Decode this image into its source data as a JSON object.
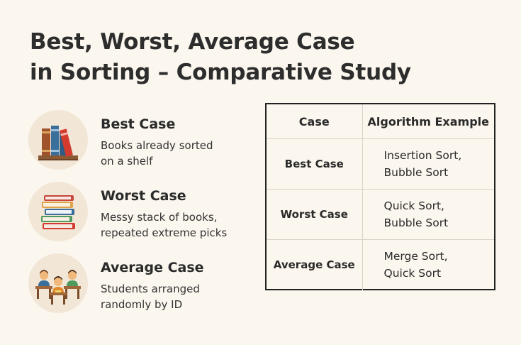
{
  "title": {
    "line1": "Best, Worst, Average Case",
    "line2": "in Sorting – Comparative Study"
  },
  "cases": [
    {
      "heading": "Best Case",
      "desc_line1": "Books already sorted",
      "desc_line2": "on a shelf",
      "icon": "books-on-shelf-icon"
    },
    {
      "heading": "Worst Case",
      "desc_line1": "Messy stack of books,",
      "desc_line2": "repeated extreme picks",
      "icon": "stack-of-books-icon"
    },
    {
      "heading": "Average Case",
      "desc_line1": "Students arranged",
      "desc_line2": "randomly by ID",
      "icon": "students-at-desks-icon"
    }
  ],
  "table": {
    "headers": [
      "Case",
      "Algorithm Example"
    ],
    "rows": [
      {
        "case": "Best Case",
        "alg_line1": "Insertion Sort,",
        "alg_line2": "Bubble Sort"
      },
      {
        "case": "Worst Case",
        "alg_line1": "Quick Sort,",
        "alg_line2": "Bubble Sort"
      },
      {
        "case": "Average Case",
        "alg_line1": "Merge Sort,",
        "alg_line2": "Quick Sort"
      }
    ]
  },
  "colors": {
    "background": "#fbf6ee",
    "icon_circle": "#f2e6d6",
    "book_brown": "#a0522d",
    "book_blue": "#3a6f9c",
    "book_red": "#d43b2f",
    "book_green": "#4f9a5e",
    "student_orange": "#e08a2c"
  }
}
